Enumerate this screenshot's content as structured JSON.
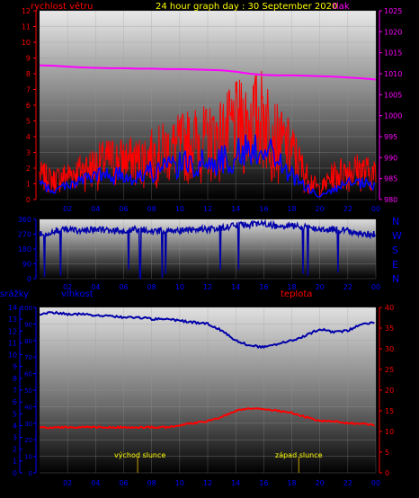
{
  "header": {
    "title": "24 hour graph day : 30 September 2020",
    "left_label": "rychlost větru",
    "right_label": "tlak"
  },
  "colors": {
    "wind": "#ff0000",
    "gust": "#0000ff",
    "pressure": "#ff00ff",
    "direction": "#0000aa",
    "humidity": "#0000aa",
    "temperature": "#ff0000",
    "title": "#ffff00",
    "axis_left": "#ff0000",
    "axis_right": "#ff00ff",
    "axis_dir": "#0000ff"
  },
  "bottom_labels": {
    "rain": "srážky",
    "humidity": "vlhkost",
    "temperature": "teplota",
    "sunrise": "východ slunce",
    "sunset": "západ slunce"
  },
  "compass": [
    "N",
    "W",
    "S",
    "E",
    "N"
  ],
  "chart_data": [
    {
      "type": "line",
      "name": "wind and pressure",
      "x_ticks": [
        "02",
        "04",
        "06",
        "08",
        "10",
        "12",
        "14",
        "16",
        "18",
        "20",
        "22",
        "00"
      ],
      "y_left_ticks": [
        "0",
        "1",
        "2",
        "3",
        "4",
        "5",
        "6",
        "7",
        "8",
        "9",
        "10",
        "11",
        "12"
      ],
      "y_right_ticks": [
        "980",
        "985",
        "990",
        "995",
        "1000",
        "1005",
        "1010",
        "1015",
        "1020",
        "1025"
      ],
      "ylim_left": [
        0,
        12
      ],
      "ylim_right": [
        980,
        1025
      ],
      "xlim": [
        0,
        24
      ],
      "wind_envelope": {
        "x": [
          0,
          1,
          2,
          3,
          4,
          5,
          6,
          7,
          8,
          9,
          10,
          11,
          12,
          13,
          14,
          15,
          16,
          17,
          18,
          19,
          20,
          21,
          22,
          23,
          24
        ],
        "max": [
          2.5,
          2,
          2.5,
          3,
          3.5,
          4,
          4,
          4,
          4.5,
          5,
          5.5,
          6,
          6,
          6.5,
          7.5,
          8,
          8.5,
          6,
          5,
          2.5,
          1,
          2.5,
          3,
          3,
          2.5
        ],
        "gust": [
          1,
          0.5,
          1,
          1.2,
          1.5,
          1.5,
          1.5,
          1.5,
          1.8,
          2,
          2.2,
          2.3,
          2.3,
          2.5,
          2.8,
          3.2,
          3.5,
          2.5,
          1.5,
          0.8,
          0.2,
          0.6,
          1,
          1,
          0.8
        ]
      },
      "pressure": {
        "x": [
          0,
          1,
          2,
          3,
          4,
          5,
          6,
          7,
          8,
          9,
          10,
          11,
          12,
          13,
          14,
          15,
          16,
          17,
          18,
          19,
          20,
          21,
          22,
          23,
          24
        ],
        "values": [
          1012,
          1011.9,
          1011.7,
          1011.5,
          1011.4,
          1011.3,
          1011.3,
          1011.2,
          1011.2,
          1011.1,
          1011.1,
          1011,
          1010.9,
          1010.8,
          1010.5,
          1010,
          1009.7,
          1009.6,
          1009.6,
          1009.5,
          1009.4,
          1009.3,
          1009.1,
          1008.9,
          1008.6
        ]
      }
    },
    {
      "type": "line",
      "name": "wind direction",
      "x_ticks": [
        "02",
        "04",
        "06",
        "08",
        "10",
        "12",
        "14",
        "16",
        "18",
        "20",
        "22",
        "00"
      ],
      "y_ticks": [
        "0",
        "90",
        "180",
        "270",
        "360"
      ],
      "ylim": [
        0,
        360
      ],
      "direction": {
        "x": [
          0,
          1,
          2,
          3,
          4,
          5,
          6,
          7,
          8,
          9,
          10,
          11,
          12,
          13,
          14,
          15,
          16,
          17,
          18,
          19,
          20,
          21,
          22,
          23,
          24
        ],
        "values": [
          270,
          290,
          300,
          290,
          300,
          290,
          290,
          300,
          290,
          290,
          290,
          300,
          300,
          310,
          320,
          330,
          330,
          320,
          320,
          310,
          300,
          300,
          290,
          270,
          270
        ]
      }
    },
    {
      "type": "line",
      "name": "rain humidity temperature",
      "x_ticks": [
        "02",
        "04",
        "06",
        "08",
        "10",
        "12",
        "14",
        "16",
        "18",
        "20",
        "22",
        "00"
      ],
      "y_rain_ticks": [
        "0",
        "1",
        "2",
        "3",
        "4",
        "5",
        "6",
        "7",
        "8",
        "9",
        "10",
        "11",
        "12",
        "13",
        "14"
      ],
      "y_humidity_ticks": [
        "0",
        "10",
        "20",
        "30",
        "40",
        "50",
        "60",
        "70",
        "80",
        "90",
        "100"
      ],
      "y_temp_ticks": [
        "0",
        "5",
        "10",
        "15",
        "20",
        "25",
        "30",
        "35",
        "40"
      ],
      "ylim_rain": [
        0,
        14
      ],
      "ylim_humidity": [
        0,
        100
      ],
      "ylim_temp": [
        0,
        40
      ],
      "humidity": {
        "x": [
          0,
          1,
          2,
          3,
          4,
          5,
          6,
          7,
          8,
          9,
          10,
          11,
          12,
          13,
          14,
          15,
          16,
          17,
          18,
          19,
          20,
          21,
          22,
          23,
          24
        ],
        "values": [
          96,
          97,
          96,
          96,
          95,
          95,
          94,
          94,
          93,
          93,
          92,
          91,
          90,
          86,
          80,
          77,
          76,
          78,
          80,
          83,
          87,
          85,
          86,
          90,
          91
        ]
      },
      "temperature": {
        "x": [
          0,
          1,
          2,
          3,
          4,
          5,
          6,
          7,
          8,
          9,
          10,
          11,
          12,
          13,
          14,
          15,
          16,
          17,
          18,
          19,
          20,
          21,
          22,
          23,
          24
        ],
        "values": [
          11,
          11,
          11,
          11,
          11,
          11,
          11,
          11,
          11,
          11,
          11.5,
          12,
          12.5,
          13.5,
          15,
          15.5,
          15.5,
          15,
          14.5,
          13.5,
          12.5,
          12.5,
          12,
          12,
          11.5
        ]
      },
      "sunrise_hour": 7,
      "sunset_hour": 18.5
    }
  ]
}
